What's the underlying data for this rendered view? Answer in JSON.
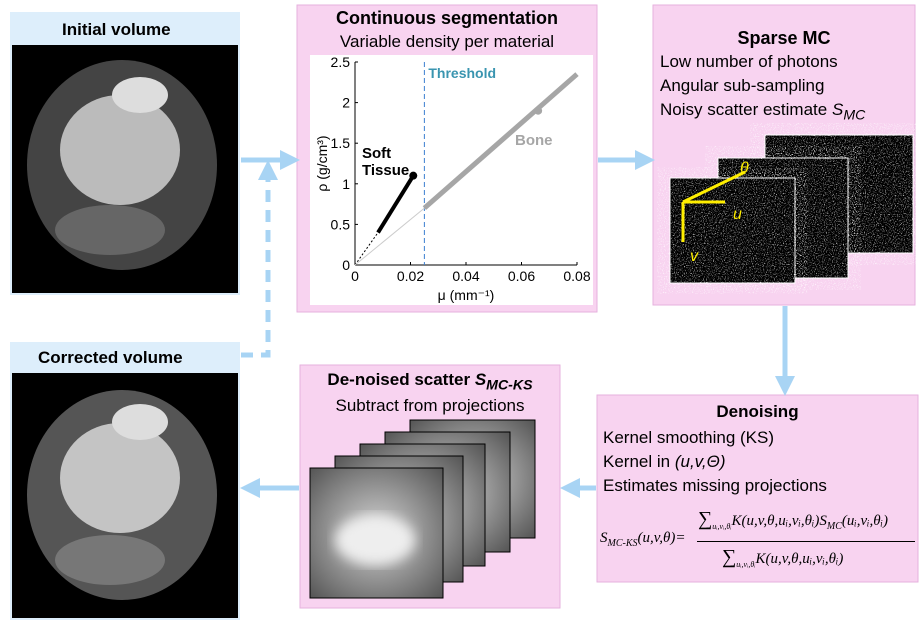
{
  "initial": {
    "title": "Initial volume"
  },
  "corrected": {
    "title": "Corrected volume"
  },
  "segmentation": {
    "title": "Continuous segmentation",
    "subtitle": "Variable density per material",
    "plot": {
      "xlabel": "μ (mm⁻¹)",
      "ylabel": "ρ (g/cm³)",
      "xlim": [
        0,
        0.08
      ],
      "ylim": [
        0,
        2.5
      ],
      "xticks": [
        0,
        0.02,
        0.04,
        0.06,
        0.08
      ],
      "yticks": [
        0,
        0.5,
        1,
        1.5,
        2,
        2.5
      ],
      "threshold": {
        "value": 0.025,
        "label": "Threshold"
      },
      "series": [
        {
          "name": "Soft Tissue",
          "color": "#000000",
          "x": [
            0.0083,
            0.021
          ],
          "values": [
            0.4,
            1.1
          ]
        },
        {
          "name": "Bone",
          "color": "#a6a6a6",
          "x": [
            0.025,
            0.08
          ],
          "values": [
            0.7,
            2.35
          ]
        }
      ],
      "marker": {
        "x": 0.066,
        "y": 1.9
      }
    }
  },
  "sparse": {
    "title": "Sparse MC",
    "lines": [
      "Low number of photons",
      "Angular sub-sampling"
    ],
    "line3": "Noisy scatter estimate",
    "symbol": "S",
    "symbol_sub": "MC",
    "axes": [
      "θ",
      "u",
      "v"
    ]
  },
  "denoised": {
    "title": "De-noised scatter",
    "symbol": "S",
    "symbol_sub": "MC-KS",
    "subtitle": "Subtract from projections"
  },
  "denoising": {
    "title": "Denoising",
    "lines": [
      "Kernel smoothing (KS)"
    ],
    "kernel_text": "Kernel in",
    "kernel_args": "(u,v,Θ)",
    "last_line": "Estimates missing projections",
    "formula": {
      "lhs": "S",
      "lhs_sub": "MC-KS",
      "lhs_args": "(u,v,θ)=",
      "num_sum": "∑",
      "num_idx": "uᵢ,vᵢ,θᵢ",
      "num_k": "K(u,v,θ,uᵢ,vᵢ,θᵢ)S",
      "num_sub": "MC",
      "num_args": "(uᵢ,vᵢ,θᵢ)",
      "den_sum": "∑",
      "den_idx": "uᵢ,vᵢ,θᵢ",
      "den_k": "K(u,v,θ,uᵢ,vᵢ,θᵢ)"
    }
  }
}
